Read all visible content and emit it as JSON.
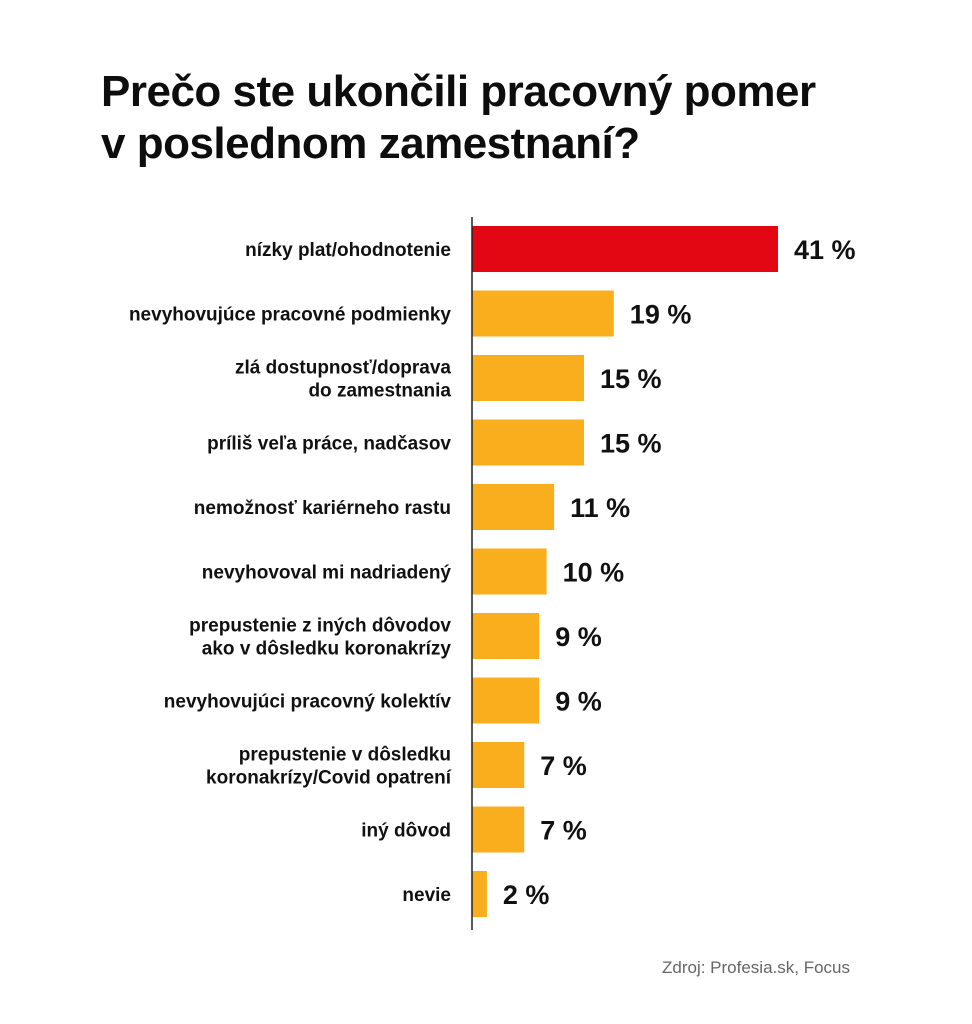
{
  "title_lines": [
    "Prečo ste ukončili pracovný pomer",
    "v poslednom zamestnaní?"
  ],
  "source": "Zdroj: Profesia.sk, Focus",
  "colors": {
    "highlight": "#e30613",
    "bar": "#f8ae1d",
    "axis": "#222222",
    "text": "#111111"
  },
  "chart_data": {
    "type": "bar",
    "orientation": "horizontal",
    "title": "Prečo ste ukončili pracovný pomer v poslednom zamestnaní?",
    "value_suffix": " %",
    "xlim": [
      0,
      41
    ],
    "grid": false,
    "legend": "none",
    "categories": [
      [
        "nízky plat/ohodnotenie"
      ],
      [
        "nevyhovujúce pracovné podmienky"
      ],
      [
        "zlá dostupnosť/doprava",
        "do zamestnania"
      ],
      [
        "príliš veľa práce, nadčasov"
      ],
      [
        "nemožnosť kariérneho rastu"
      ],
      [
        "nevyhovoval mi nadriadený"
      ],
      [
        "prepustenie z iných dôvodov",
        "ako v dôsledku koronakrízy"
      ],
      [
        "nevyhovujúci pracovný kolektív"
      ],
      [
        "prepustenie v dôsledku",
        "koronakrízy/Covid opatrení"
      ],
      [
        "iný dôvod"
      ],
      [
        "nevie"
      ]
    ],
    "values": [
      41,
      19,
      15,
      15,
      11,
      10,
      9,
      9,
      7,
      7,
      2
    ],
    "highlight_index": 0
  }
}
